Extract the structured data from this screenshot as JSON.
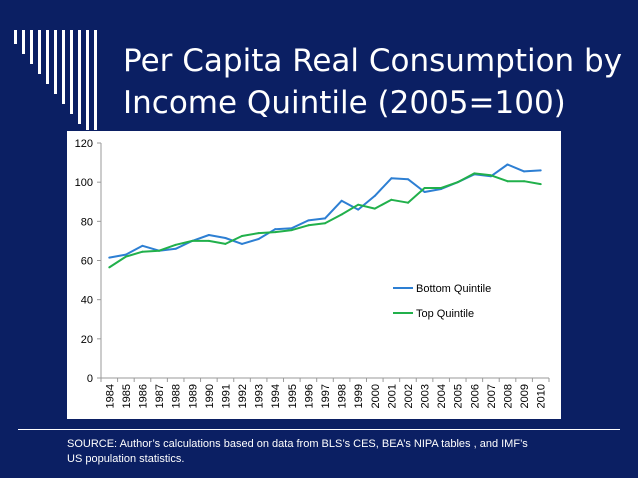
{
  "slide": {
    "title_line1": "Per Capita Real Consumption by",
    "title_line2": "Income Quintile (2005=100)",
    "source_line1": "SOURCE:   Author’s calculations based on data from  BLS’s CES, BEA’s NIPA tables , and IMF’s",
    "source_line2": "US population statistics."
  },
  "colors": {
    "background": "#0b1f63",
    "bottom_quintile": "#2d7fd3",
    "top_quintile": "#21b04b"
  },
  "chart_data": {
    "type": "line",
    "title": "",
    "xlabel": "",
    "ylabel": "",
    "ylim": [
      0,
      120
    ],
    "yticks": [
      "0",
      "20",
      "40",
      "60",
      "80",
      "100",
      "120"
    ],
    "grid": false,
    "legend_position": "right",
    "x": [
      "1984",
      "1985",
      "1986",
      "1987",
      "1988",
      "1989",
      "1990",
      "1991",
      "1992",
      "1993",
      "1994",
      "1995",
      "1996",
      "1997",
      "1998",
      "1999",
      "2000",
      "2001",
      "2002",
      "2003",
      "2004",
      "2005",
      "2006",
      "2007",
      "2008",
      "2009",
      "2010"
    ],
    "series": [
      {
        "name": "Bottom Quintile",
        "color": "#2d7fd3",
        "values": [
          61.5,
          63,
          67.5,
          65,
          66,
          70,
          73,
          71.5,
          68.5,
          71,
          76,
          76.5,
          80.5,
          81.5,
          90.5,
          86,
          93,
          102,
          101.5,
          95,
          96.5,
          100,
          104,
          103,
          109,
          105.5,
          106
        ]
      },
      {
        "name": "Top Quintile",
        "color": "#21b04b",
        "values": [
          56.5,
          62,
          64.5,
          65,
          68,
          70,
          70,
          68.5,
          72.5,
          74,
          74.5,
          75.5,
          78,
          79,
          83.5,
          88.5,
          86.5,
          91,
          89.5,
          97,
          97,
          100,
          104.5,
          103.5,
          100.5,
          100.5,
          99
        ]
      }
    ]
  }
}
